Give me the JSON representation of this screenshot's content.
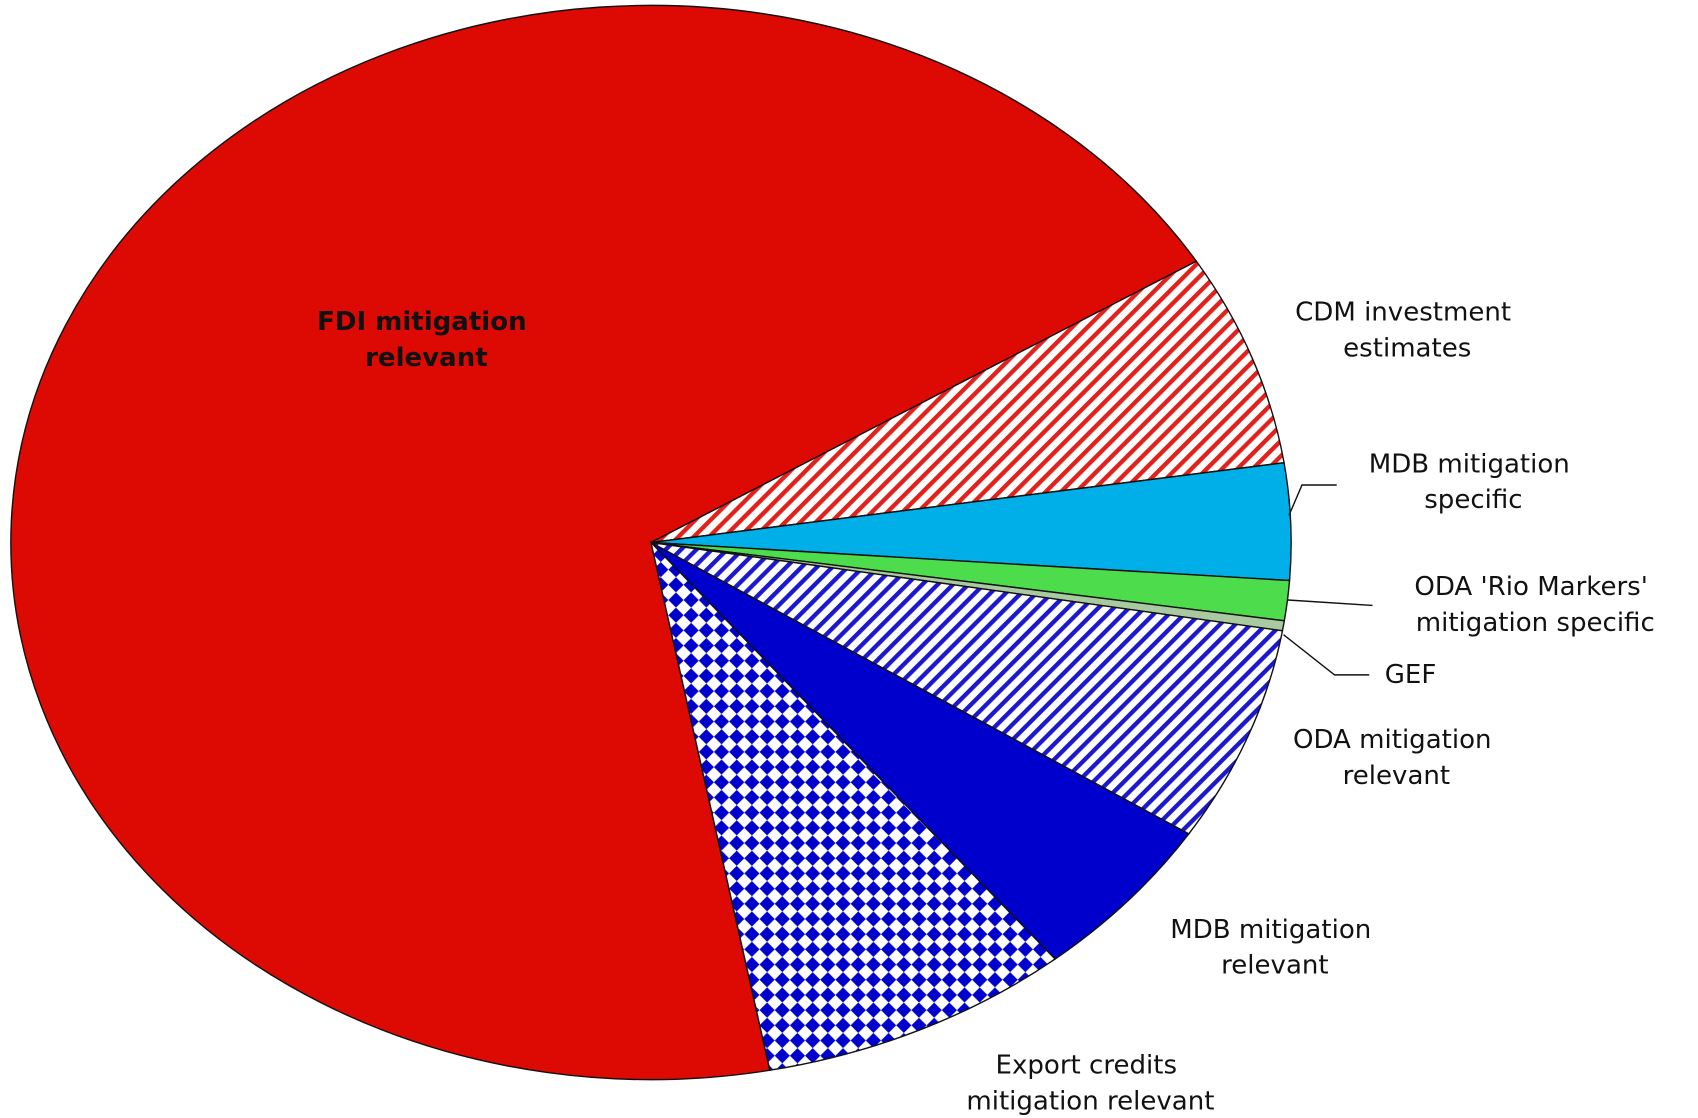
{
  "chart_data": {
    "type": "pie",
    "categories": [
      "FDI mitigation relevant",
      "CDM investment estimates",
      "MDB mitigation specific",
      "ODA 'Rio Markers' mitigation specific",
      "GEF",
      "ODA mitigation relevant",
      "MDB mitigation relevant",
      "Export credits mitigation relevant"
    ],
    "values": [
      69.2,
      6.4,
      3.5,
      1.2,
      0.3,
      6.5,
      5.0,
      7.9
    ],
    "colors": [
      "#dd0a04",
      "#e0211c",
      "#00aee8",
      "#4cdc4c",
      "#a9c9a0",
      "#1a1acc",
      "#0000cc",
      "#0000cc"
    ],
    "patterns": [
      "solid",
      "hatch",
      "solid",
      "solid",
      "solid",
      "hatch",
      "solid",
      "checker"
    ]
  }
}
